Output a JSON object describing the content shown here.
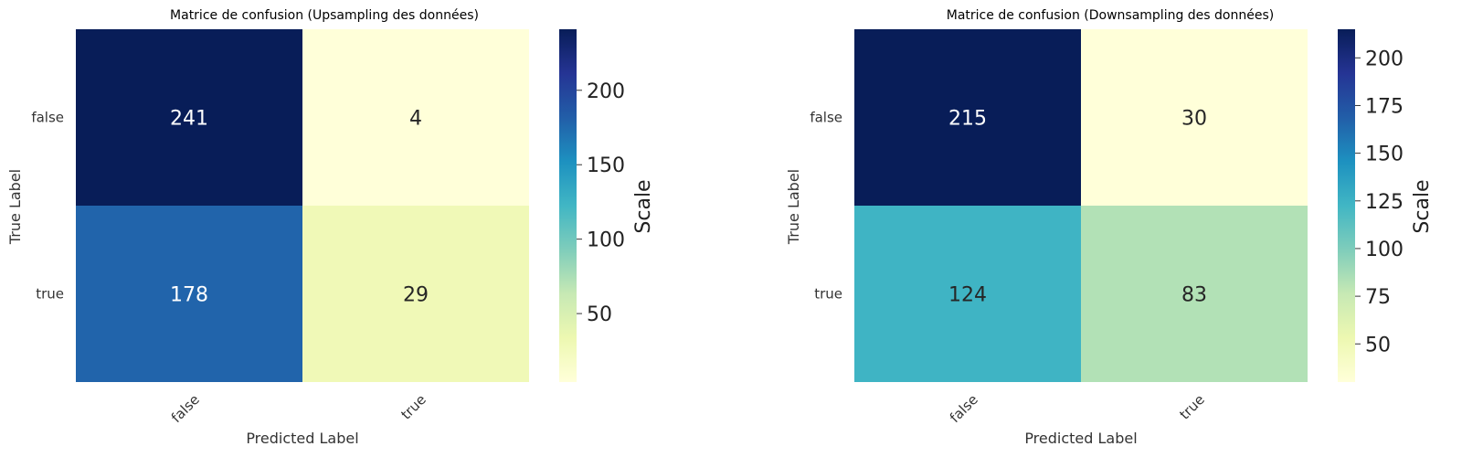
{
  "chart_data": [
    {
      "type": "heatmap",
      "title": "Matrice de confusion (Upsampling des données)",
      "xlabel": "Predicted Label",
      "ylabel": "True Label",
      "x_categories": [
        "false",
        "true"
      ],
      "y_categories": [
        "false",
        "true"
      ],
      "values": [
        [
          241,
          4
        ],
        [
          178,
          29
        ]
      ],
      "colorbar": {
        "label": "Scale",
        "min": 4,
        "max": 241,
        "ticks": [
          50,
          100,
          150,
          200
        ]
      },
      "colormap": "YlGnBu"
    },
    {
      "type": "heatmap",
      "title": "Matrice de confusion (Downsampling des données)",
      "xlabel": "Predicted Label",
      "ylabel": "True Label",
      "x_categories": [
        "false",
        "true"
      ],
      "y_categories": [
        "false",
        "true"
      ],
      "values": [
        [
          215,
          30
        ],
        [
          124,
          83
        ]
      ],
      "colorbar": {
        "label": "Scale",
        "min": 30,
        "max": 215,
        "ticks": [
          50,
          75,
          100,
          125,
          150,
          175,
          200
        ]
      },
      "colormap": "YlGnBu"
    }
  ]
}
